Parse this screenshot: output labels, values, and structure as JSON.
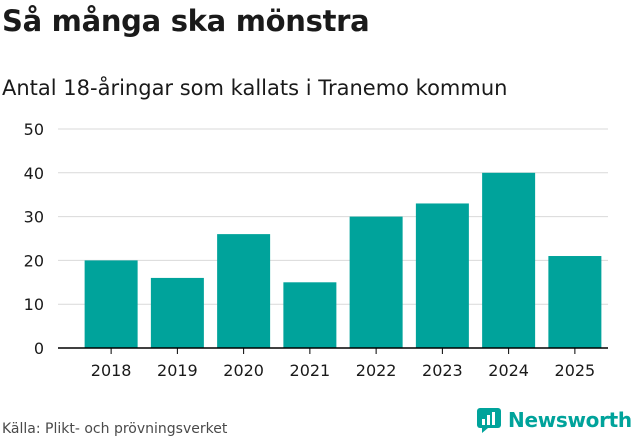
{
  "title": "Så många ska mönstra",
  "subtitle": "Antal 18-åringar som kallats i Tranemo kommun",
  "source": "Källa: Plikt- och prövningsverket",
  "brand": {
    "name": "Newsworthy",
    "icon": "newsworthy-logo-icon",
    "color": "#00a39b"
  },
  "colors": {
    "bar": "#00a39b",
    "grid": "#d9d9d9",
    "axis": "#000000",
    "text": "#1a1a1a"
  },
  "chart_data": {
    "type": "bar",
    "title": "Så många ska mönstra",
    "subtitle": "Antal 18-åringar som kallats i Tranemo kommun",
    "xlabel": "",
    "ylabel": "",
    "categories": [
      "2018",
      "2019",
      "2020",
      "2021",
      "2022",
      "2023",
      "2024",
      "2025"
    ],
    "values": [
      20,
      16,
      26,
      15,
      30,
      33,
      40,
      21
    ],
    "ylim": [
      0,
      50
    ],
    "yticks": [
      0,
      10,
      20,
      30,
      40,
      50
    ],
    "grid": true,
    "legend": "none"
  }
}
